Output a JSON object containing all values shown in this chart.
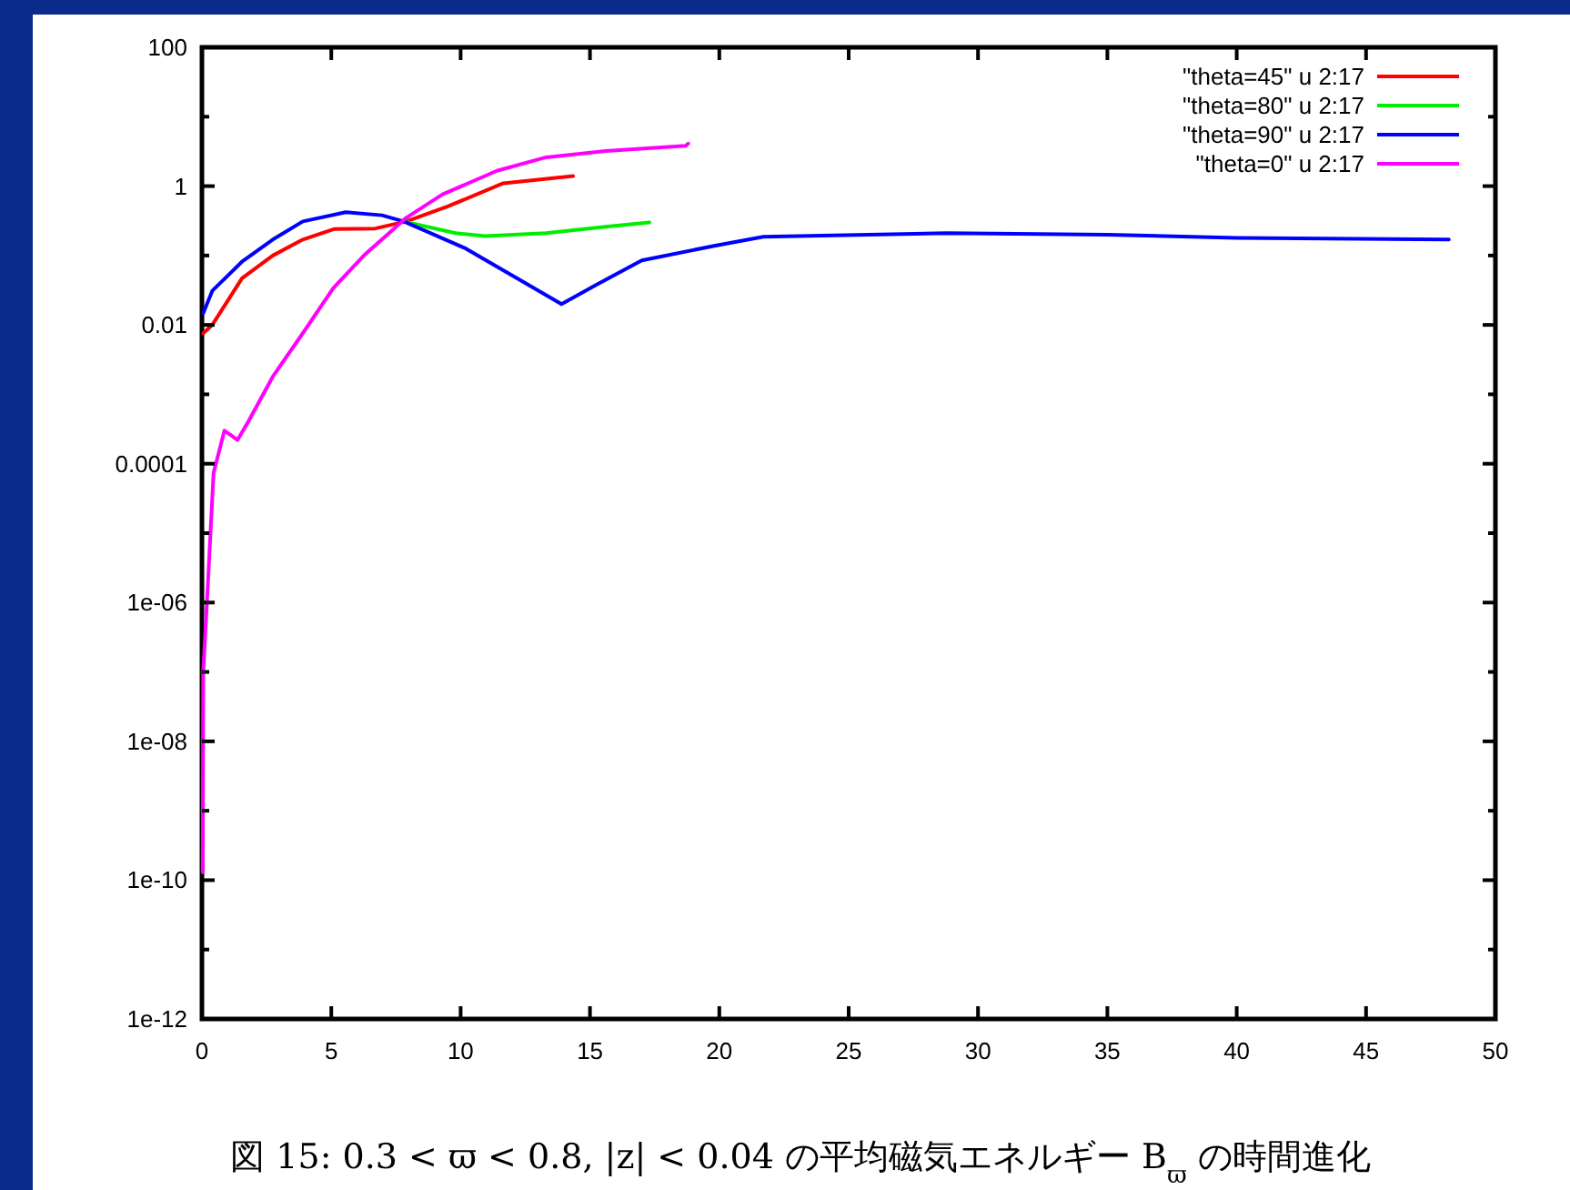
{
  "chart_data": {
    "type": "line",
    "log": "y",
    "legend": "top right",
    "xlim": [
      0,
      50
    ],
    "ylim": [
      1e-12,
      100
    ],
    "xticks": [
      0,
      5,
      10,
      15,
      20,
      25,
      30,
      35,
      40,
      45,
      50
    ],
    "yticks": [
      {
        "value": 1e-12,
        "label": "1e-12"
      },
      {
        "value": 1e-11,
        "label": null
      },
      {
        "value": 1e-10,
        "label": "1e-10"
      },
      {
        "value": 1e-09,
        "label": null
      },
      {
        "value": 1e-08,
        "label": "1e-08"
      },
      {
        "value": 1e-07,
        "label": null
      },
      {
        "value": 1e-06,
        "label": "1e-06"
      },
      {
        "value": 1e-05,
        "label": null
      },
      0.0001,
      {
        "value": 0.001,
        "label": null
      },
      0.01,
      {
        "value": 0.1,
        "label": null
      },
      1,
      {
        "value": 10,
        "label": null
      },
      100
    ],
    "series": [
      {
        "name": "\"theta=45\" u 2:17",
        "color": "#ff0000",
        "x": [
          0.05,
          0.4,
          1.55,
          2.74,
          3.9,
          5.1,
          6.7,
          7.9,
          9.5,
          11.65,
          14.35
        ],
        "values": [
          0.0076,
          0.01,
          0.047,
          0.1,
          0.17,
          0.24,
          0.245,
          0.31,
          0.51,
          1.1,
          1.4
        ]
      },
      {
        "name": "\"theta=80\" u 2:17",
        "color": "#00ee00",
        "x": [
          7.8,
          9.8,
          10.95,
          13.3,
          15.6,
          17.3
        ],
        "values": [
          0.31,
          0.21,
          0.19,
          0.21,
          0.26,
          0.3
        ]
      },
      {
        "name": "\"theta=90\" u 2:17",
        "color": "#0000ff",
        "x": [
          0.05,
          0.4,
          1.57,
          2.74,
          3.9,
          5.56,
          6.96,
          7.8,
          10.2,
          12.4,
          13.9,
          15.2,
          17,
          19.8,
          21.7,
          28.8,
          35,
          40,
          48.2
        ],
        "values": [
          0.0148,
          0.031,
          0.083,
          0.17,
          0.31,
          0.42,
          0.38,
          0.31,
          0.126,
          0.042,
          0.02,
          0.037,
          0.085,
          0.138,
          0.186,
          0.21,
          0.2,
          0.18,
          0.17
        ]
      },
      {
        "name": "\"theta=0\" u 2:17",
        "color": "#ff00ff",
        "x": [
          0.03,
          0.05,
          0.2,
          0.45,
          0.87,
          1.38,
          1.8,
          2.74,
          3.9,
          5.08,
          6.26,
          7.9,
          9.3,
          11.4,
          13.3,
          15.6,
          18.7,
          18.8
        ],
        "values": [
          1.3e-10,
          1e-07,
          1.1e-06,
          7.4e-05,
          0.0003,
          0.00022,
          0.00041,
          0.0018,
          0.0076,
          0.034,
          0.1,
          0.35,
          0.76,
          1.66,
          2.6,
          3.2,
          3.8,
          4.1
        ]
      }
    ],
    "annotations": [
      "図 15: 0.3 < ϖ < 0.8, |z| < 0.04 の平均磁気エネルギー B$_{ϖ}$ の時間進化"
    ]
  }
}
